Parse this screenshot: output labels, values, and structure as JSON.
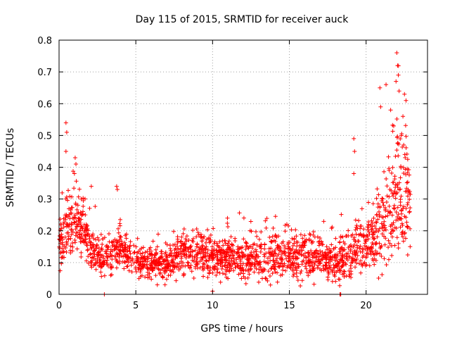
{
  "chart_data": {
    "type": "scatter",
    "title": "Day 115 of 2015, SRMTID for receiver auck",
    "xlabel": "GPS time / hours",
    "ylabel": "SRMTID / TECUs",
    "xlim": [
      0,
      24
    ],
    "ylim": [
      0,
      0.8
    ],
    "xticks": [
      0,
      5,
      10,
      15,
      20
    ],
    "xtick_labels": [
      "0",
      "5",
      "10",
      "15",
      "20"
    ],
    "yticks": [
      0,
      0.1,
      0.2,
      0.3,
      0.4,
      0.5,
      0.6,
      0.7,
      0.8
    ],
    "ytick_labels": [
      "0",
      "0.1",
      "0.2",
      "0.3",
      "0.4",
      "0.5",
      "0.6",
      "0.7",
      "0.8"
    ],
    "grid": true,
    "marker": "+",
    "point_count_estimate": 2000,
    "x_data_range": [
      0,
      22.9
    ],
    "color": "#ff0000",
    "profile_hours": [
      0,
      0.5,
      1,
      1.5,
      2,
      3,
      4,
      5,
      6,
      7,
      8,
      10,
      12,
      14,
      16,
      17,
      18,
      19,
      19.5,
      20,
      20.5,
      21,
      21.5,
      22,
      22.5,
      22.9
    ],
    "profile_median": [
      0.17,
      0.21,
      0.22,
      0.21,
      0.14,
      0.11,
      0.15,
      0.1,
      0.09,
      0.1,
      0.12,
      0.12,
      0.11,
      0.12,
      0.12,
      0.11,
      0.1,
      0.12,
      0.14,
      0.15,
      0.17,
      0.2,
      0.25,
      0.33,
      0.3,
      0.26
    ],
    "profile_spread": [
      0.05,
      0.06,
      0.06,
      0.05,
      0.04,
      0.035,
      0.04,
      0.03,
      0.03,
      0.035,
      0.04,
      0.04,
      0.04,
      0.045,
      0.045,
      0.04,
      0.04,
      0.05,
      0.05,
      0.05,
      0.06,
      0.08,
      0.1,
      0.13,
      0.12,
      0.08
    ],
    "notable_points": [
      {
        "x": 0.45,
        "y": 0.54
      },
      {
        "x": 0.5,
        "y": 0.51
      },
      {
        "x": 0.45,
        "y": 0.45
      },
      {
        "x": 1.05,
        "y": 0.43
      },
      {
        "x": 1.1,
        "y": 0.41
      },
      {
        "x": 1.0,
        "y": 0.38
      },
      {
        "x": 3.75,
        "y": 0.34
      },
      {
        "x": 3.8,
        "y": 0.33
      },
      {
        "x": 2.1,
        "y": 0.34
      },
      {
        "x": 19.2,
        "y": 0.49
      },
      {
        "x": 19.25,
        "y": 0.45
      },
      {
        "x": 19.2,
        "y": 0.38
      },
      {
        "x": 20.9,
        "y": 0.65
      },
      {
        "x": 20.95,
        "y": 0.59
      },
      {
        "x": 21.3,
        "y": 0.66
      },
      {
        "x": 21.6,
        "y": 0.58
      },
      {
        "x": 21.8,
        "y": 0.53
      },
      {
        "x": 22.0,
        "y": 0.76
      },
      {
        "x": 22.05,
        "y": 0.72
      },
      {
        "x": 22.1,
        "y": 0.69
      },
      {
        "x": 21.95,
        "y": 0.67
      },
      {
        "x": 22.15,
        "y": 0.64
      },
      {
        "x": 22.5,
        "y": 0.63
      },
      {
        "x": 22.6,
        "y": 0.61
      },
      {
        "x": 22.4,
        "y": 0.56
      },
      {
        "x": 22.3,
        "y": 0.5
      },
      {
        "x": 22.45,
        "y": 0.47
      },
      {
        "x": 2.95,
        "y": 0.0
      },
      {
        "x": 18.3,
        "y": 0.0
      },
      {
        "x": 18.35,
        "y": 0.0
      },
      {
        "x": 10.0,
        "y": 0.01
      },
      {
        "x": 6.4,
        "y": 0.03
      },
      {
        "x": 11.0,
        "y": 0.05
      }
    ]
  }
}
